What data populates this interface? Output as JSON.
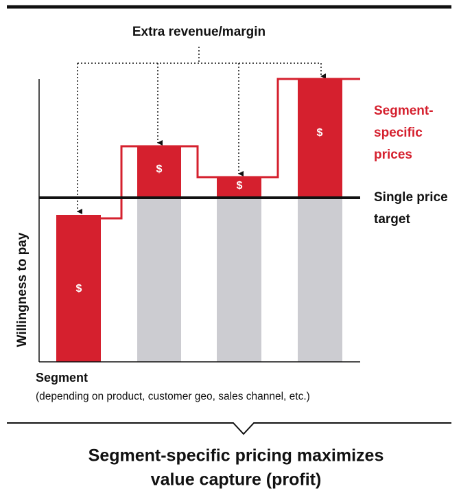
{
  "annotation": "Extra revenue/margin",
  "y_axis_label": "Willingness to pay",
  "x_axis_label": "Segment",
  "x_axis_note": "(depending on product, customer geo, sales channel, etc.)",
  "segments": [
    {
      "label": "$"
    },
    {
      "label": "$"
    },
    {
      "label": "$"
    },
    {
      "label": "$"
    }
  ],
  "legend": {
    "segment_prices": [
      "Segment-",
      "specific",
      "prices"
    ],
    "single_price": [
      "Single price",
      "target"
    ]
  },
  "conclusion": [
    "Segment-specific pricing maximizes",
    "value capture (profit)"
  ]
}
